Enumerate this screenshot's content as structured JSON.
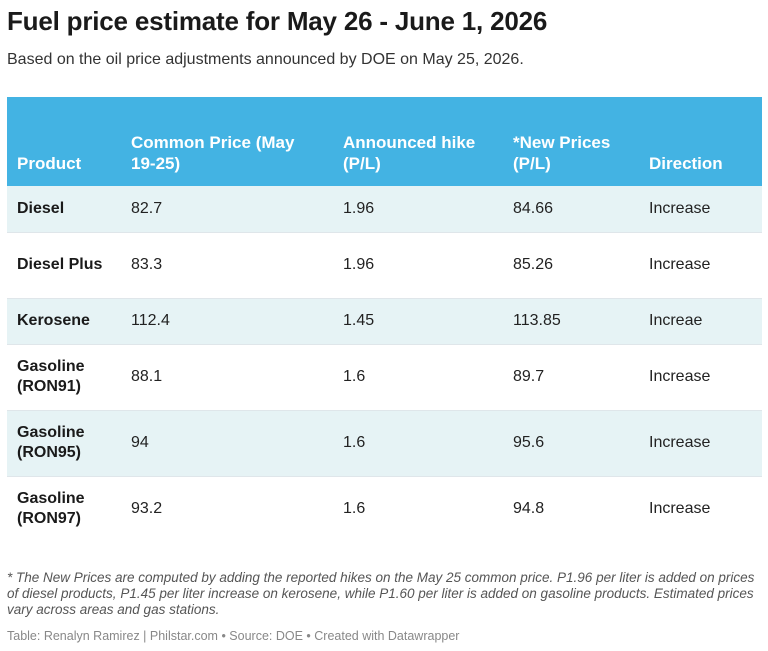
{
  "title": "Fuel price estimate for May 26 - June 1, 2026",
  "subtitle": "Based on the oil price adjustments announced by DOE on May 25, 2026.",
  "chart_data": {
    "type": "table",
    "columns": [
      "Product",
      "Common Price (May 19-25)",
      "Announced hike (P/L)",
      "*New Prices (P/L)",
      "Direction"
    ],
    "rows": [
      [
        "Diesel",
        "82.7",
        "1.96",
        "84.66",
        "Increase"
      ],
      [
        "Diesel Plus",
        "83.3",
        "1.96",
        "85.26",
        "Increase"
      ],
      [
        "Kerosene",
        "112.4",
        "1.45",
        "113.85",
        "Increae"
      ],
      [
        "Gasoline (RON91)",
        "88.1",
        "1.6",
        "89.7",
        "Increase"
      ],
      [
        "Gasoline (RON95)",
        "94",
        "1.6",
        "95.6",
        "Increase"
      ],
      [
        "Gasoline (RON97)",
        "93.2",
        "1.6",
        "94.8",
        "Increase"
      ]
    ]
  },
  "colors": {
    "header_background": "#43b3e3",
    "header_text": "#ffffff",
    "alternate_row": "#e6f3f5"
  },
  "footnote": "* The New Prices are computed by adding the reported hikes on the May 25 common price. P1.96 per liter is added on prices of diesel products, P1.45 per liter increase on kerosene, while P1.60 per liter is added on gasoline products. Estimated prices vary across areas and gas stations.",
  "credits": "Table: Renalyn Ramirez | Philstar.com • Source: DOE • Created with Datawrapper"
}
